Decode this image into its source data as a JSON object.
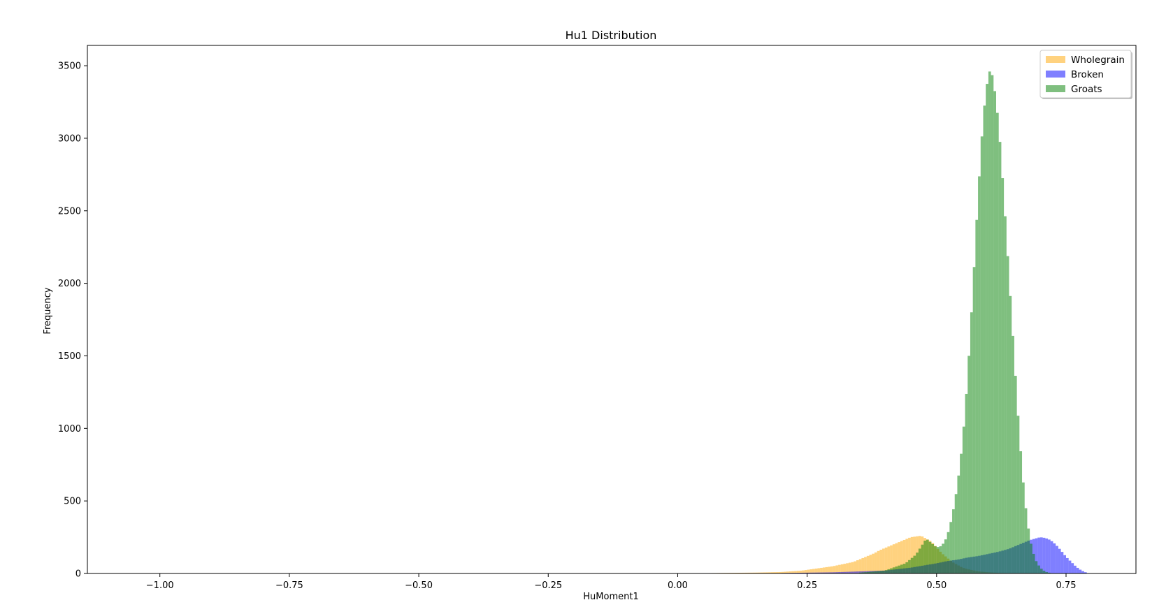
{
  "chart_data": {
    "type": "histogram",
    "title": "Hu1 Distribution",
    "xlabel": "HuMoment1",
    "ylabel": "Frequency",
    "xlim": [
      -1.14,
      0.885
    ],
    "ylim": [
      0,
      3640
    ],
    "x_ticks": [
      -1.0,
      -0.75,
      -0.5,
      -0.25,
      0.0,
      0.25,
      0.5,
      0.75
    ],
    "x_tick_labels": [
      "−1.00",
      "−0.75",
      "−0.50",
      "−0.25",
      "0.00",
      "0.25",
      "0.50",
      "0.75"
    ],
    "y_ticks": [
      0,
      500,
      1000,
      1500,
      2000,
      2500,
      3000,
      3500
    ],
    "y_tick_labels": [
      "0",
      "500",
      "1000",
      "1500",
      "2000",
      "2500",
      "3000",
      "3500"
    ],
    "grid": false,
    "legend_position": "top-right",
    "bin_width": 0.005,
    "series": [
      {
        "name": "Wholegrain",
        "color": "#ffa500",
        "opacity": 0.5,
        "x": [
          0.05,
          0.1,
          0.15,
          0.2,
          0.24,
          0.26,
          0.28,
          0.3,
          0.32,
          0.34,
          0.35,
          0.36,
          0.37,
          0.38,
          0.39,
          0.4,
          0.41,
          0.42,
          0.43,
          0.44,
          0.45,
          0.46,
          0.47,
          0.48,
          0.49,
          0.5,
          0.51,
          0.52,
          0.53,
          0.54,
          0.55,
          0.56,
          0.58,
          0.6,
          0.62,
          0.64
        ],
        "values": [
          2,
          4,
          6,
          10,
          20,
          30,
          40,
          50,
          65,
          80,
          95,
          110,
          125,
          140,
          160,
          175,
          190,
          205,
          220,
          235,
          250,
          255,
          260,
          240,
          220,
          180,
          140,
          110,
          80,
          60,
          40,
          30,
          15,
          8,
          4,
          2
        ]
      },
      {
        "name": "Broken",
        "color": "#0000ff",
        "opacity": 0.5,
        "x": [
          0.2,
          0.3,
          0.4,
          0.45,
          0.5,
          0.52,
          0.54,
          0.56,
          0.58,
          0.6,
          0.62,
          0.64,
          0.66,
          0.68,
          0.7,
          0.71,
          0.72,
          0.73,
          0.74,
          0.75,
          0.76,
          0.77,
          0.78,
          0.79
        ],
        "values": [
          3,
          8,
          20,
          40,
          70,
          85,
          95,
          110,
          120,
          135,
          150,
          170,
          200,
          230,
          250,
          245,
          230,
          200,
          160,
          115,
          80,
          45,
          20,
          5
        ]
      },
      {
        "name": "Groats",
        "color": "#008000",
        "opacity": 0.5,
        "x": [
          0.35,
          0.4,
          0.44,
          0.46,
          0.48,
          0.5,
          0.51,
          0.52,
          0.53,
          0.54,
          0.55,
          0.56,
          0.57,
          0.58,
          0.59,
          0.6,
          0.605,
          0.61,
          0.62,
          0.63,
          0.64,
          0.65,
          0.66,
          0.67,
          0.68,
          0.69,
          0.7,
          0.71,
          0.72
        ],
        "values": [
          5,
          20,
          70,
          130,
          240,
          180,
          190,
          250,
          390,
          600,
          900,
          1350,
          1950,
          2600,
          3150,
          3450,
          3470,
          3400,
          3100,
          2600,
          2050,
          1500,
          950,
          520,
          240,
          100,
          40,
          12,
          3
        ]
      }
    ]
  }
}
